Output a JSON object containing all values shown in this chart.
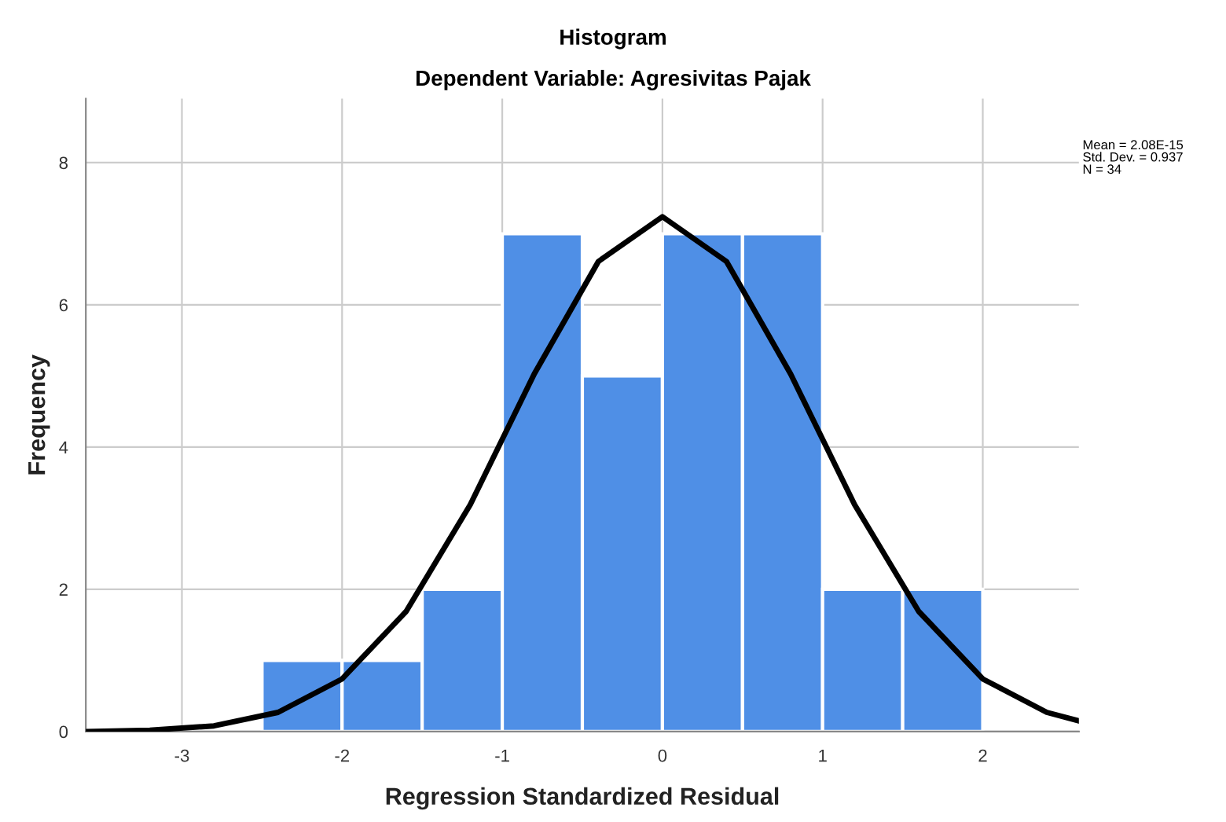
{
  "chart_data": {
    "type": "histogram",
    "title": "Histogram",
    "subtitle": "Dependent Variable: Agresivitas Pajak",
    "xlabel": "Regression Standardized Residual",
    "ylabel": "Frequency",
    "bins": [
      -2.5,
      -2.0,
      -1.5,
      -1.0,
      -0.5,
      0.0,
      0.5,
      1.0,
      1.5,
      2.0
    ],
    "values": [
      1,
      1,
      2,
      7,
      5,
      7,
      7,
      2,
      2
    ],
    "color": "#4f8fe6",
    "series": [
      {
        "type": "line",
        "color": "#000000",
        "x": [
          -3.6,
          -3.2,
          -2.8,
          -2.4,
          -2.0,
          -1.6,
          -1.2,
          -0.8,
          -0.4,
          0.0,
          0.4,
          0.8,
          1.2,
          1.6,
          2.0,
          2.4,
          2.6
        ],
        "values": [
          0.0,
          0.02,
          0.08,
          0.27,
          0.74,
          1.69,
          3.19,
          5.03,
          6.61,
          7.24,
          6.61,
          5.03,
          3.19,
          1.69,
          0.74,
          0.27,
          0.15
        ]
      }
    ],
    "xlim": [
      -3.6,
      2.6
    ],
    "xticks": [
      -3,
      -2,
      -1,
      0,
      1,
      2
    ],
    "ylim": [
      0,
      8.9
    ],
    "yticks": [
      0,
      2,
      4,
      6,
      8
    ],
    "grid": true,
    "annotations": [
      "Mean = 2.08E-15\nStd. Dev. = 0.937\nN = 34"
    ]
  }
}
